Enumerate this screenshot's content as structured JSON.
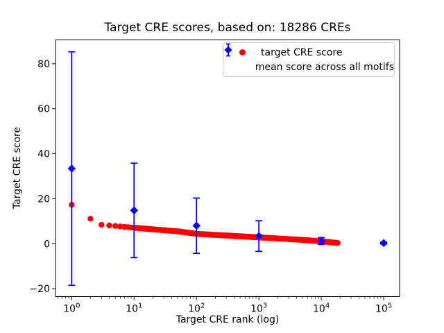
{
  "figure": {
    "title": "Target CRE scores, based on: 18286 CREs",
    "xlabel": "Target CRE rank (log)",
    "ylabel": "Target CRE score",
    "background_color": "#ffffff",
    "axes_color": "#000000"
  },
  "legend": {
    "position": "upper right",
    "border_color": "#cccccc",
    "items": [
      {
        "label": "target CRE score",
        "marker": "circle",
        "color": "#ff0000"
      },
      {
        "label": "mean score across all motifs",
        "marker": "diamond-with-errorbar",
        "color": "#0000ff"
      }
    ]
  },
  "chart_data": {
    "type": "scatter",
    "title": "Target CRE scores, based on: 18286 CREs",
    "xlabel": "Target CRE rank (log)",
    "ylabel": "Target CRE score",
    "x_scale": "log",
    "y_scale": "linear",
    "xlim": [
      0.55,
      180000
    ],
    "ylim": [
      -23.5,
      90.6
    ],
    "grid": false,
    "legend_position": "upper right",
    "x_ticks": [
      {
        "value": 1,
        "base": "10",
        "exp": "0"
      },
      {
        "value": 10,
        "base": "10",
        "exp": "1"
      },
      {
        "value": 100,
        "base": "10",
        "exp": "2"
      },
      {
        "value": 1000,
        "base": "10",
        "exp": "3"
      },
      {
        "value": 10000,
        "base": "10",
        "exp": "4"
      },
      {
        "value": 100000,
        "base": "10",
        "exp": "5"
      }
    ],
    "y_ticks": [
      {
        "value": -20,
        "label": "−20"
      },
      {
        "value": 0,
        "label": "0"
      },
      {
        "value": 20,
        "label": "20"
      },
      {
        "value": 40,
        "label": "40"
      },
      {
        "value": 60,
        "label": "60"
      },
      {
        "value": 80,
        "label": "80"
      }
    ],
    "series": [
      {
        "name": "target CRE score",
        "marker": "circle",
        "color": "#ff0000",
        "n_points": 18286,
        "max_rank": 18286,
        "curve_log10_rank": [
          0,
          0.301,
          0.477,
          0.602,
          0.699,
          0.845,
          1.0,
          1.3,
          1.7,
          2.0,
          2.3,
          2.7,
          3.0,
          3.3,
          3.7,
          4.0,
          4.15,
          4.262
        ],
        "curve_score": [
          17.3,
          11.1,
          8.4,
          8.1,
          7.9,
          7.5,
          7.1,
          6.4,
          5.5,
          4.4,
          3.9,
          3.3,
          2.8,
          2.35,
          1.7,
          1.05,
          0.65,
          0.35
        ]
      },
      {
        "name": "mean score across all motifs",
        "marker": "diamond",
        "color": "#0000ff",
        "x": [
          1,
          10,
          100,
          1000,
          10000,
          100000
        ],
        "y": [
          33.4,
          14.8,
          8.0,
          3.4,
          1.2,
          0.3
        ],
        "yerr": [
          51.9,
          21.0,
          12.3,
          6.8,
          1.5,
          0.4
        ]
      }
    ]
  }
}
